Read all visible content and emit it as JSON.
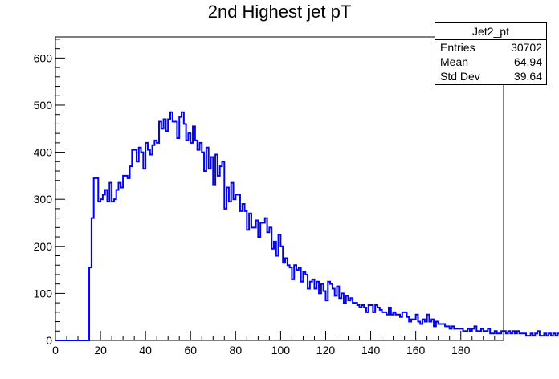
{
  "chart_data": {
    "type": "bar",
    "style": "step-histogram",
    "title": "2nd Highest jet pT",
    "xlabel": "",
    "ylabel": "",
    "xlim": [
      0,
      199
    ],
    "ylim": [
      0,
      645
    ],
    "bin_width": 1,
    "x_ticks": [
      0,
      20,
      40,
      60,
      80,
      100,
      120,
      140,
      160,
      180
    ],
    "y_ticks": [
      0,
      100,
      200,
      300,
      400,
      500,
      600
    ],
    "line_color": "#0000ff",
    "grid": false,
    "legend": "top-right",
    "stats_box": {
      "name": "Jet2_pt",
      "rows": [
        {
          "label": "Entries",
          "value": "30702"
        },
        {
          "label": "Mean",
          "value": "64.94"
        },
        {
          "label": "Std Dev",
          "value": "39.64"
        }
      ]
    },
    "x_start": 0,
    "values": [
      0,
      0,
      0,
      0,
      0,
      0,
      0,
      0,
      0,
      0,
      0,
      0,
      0,
      0,
      0,
      155,
      260,
      345,
      345,
      295,
      300,
      310,
      320,
      295,
      335,
      295,
      300,
      320,
      335,
      325,
      350,
      350,
      345,
      370,
      405,
      405,
      380,
      410,
      400,
      365,
      420,
      405,
      395,
      415,
      425,
      420,
      465,
      450,
      470,
      445,
      470,
      485,
      465,
      465,
      430,
      475,
      485,
      460,
      425,
      440,
      420,
      455,
      425,
      405,
      420,
      400,
      360,
      410,
      365,
      390,
      330,
      395,
      350,
      370,
      380,
      280,
      325,
      295,
      335,
      300,
      310,
      310,
      275,
      290,
      275,
      235,
      270,
      240,
      240,
      255,
      220,
      250,
      250,
      260,
      230,
      240,
      195,
      210,
      180,
      225,
      200,
      165,
      175,
      160,
      155,
      130,
      160,
      150,
      155,
      125,
      145,
      140,
      110,
      125,
      130,
      110,
      125,
      100,
      120,
      105,
      85,
      125,
      120,
      110,
      95,
      115,
      90,
      100,
      80,
      95,
      85,
      90,
      80,
      80,
      75,
      70,
      75,
      70,
      60,
      75,
      75,
      60,
      75,
      70,
      65,
      60,
      60,
      55,
      70,
      55,
      60,
      55,
      55,
      50,
      60,
      60,
      50,
      40,
      45,
      45,
      55,
      40,
      35,
      45,
      40,
      55,
      40,
      45,
      30,
      40,
      35,
      35,
      35,
      30,
      30,
      25,
      30,
      25,
      25,
      25,
      25,
      20,
      20,
      25,
      20,
      25,
      30,
      20,
      20,
      25,
      20,
      20,
      25,
      15,
      15,
      20,
      15,
      15,
      20,
      20,
      15,
      20,
      15,
      20,
      15,
      20,
      15,
      15,
      15,
      10,
      10,
      15,
      10,
      15,
      20,
      10,
      10,
      15,
      10,
      15,
      10,
      15,
      10,
      15,
      10,
      10,
      15,
      10,
      15,
      10,
      10,
      10,
      15,
      10,
      10,
      10,
      10,
      10,
      15,
      10,
      10,
      10,
      10,
      10,
      10,
      10,
      15,
      10,
      10,
      10,
      10,
      10,
      10,
      15,
      10,
      15,
      10,
      10,
      10,
      10,
      10,
      15,
      10,
      10,
      15,
      10,
      10,
      10,
      10,
      10,
      10,
      10,
      15,
      10,
      20,
      640
    ]
  }
}
